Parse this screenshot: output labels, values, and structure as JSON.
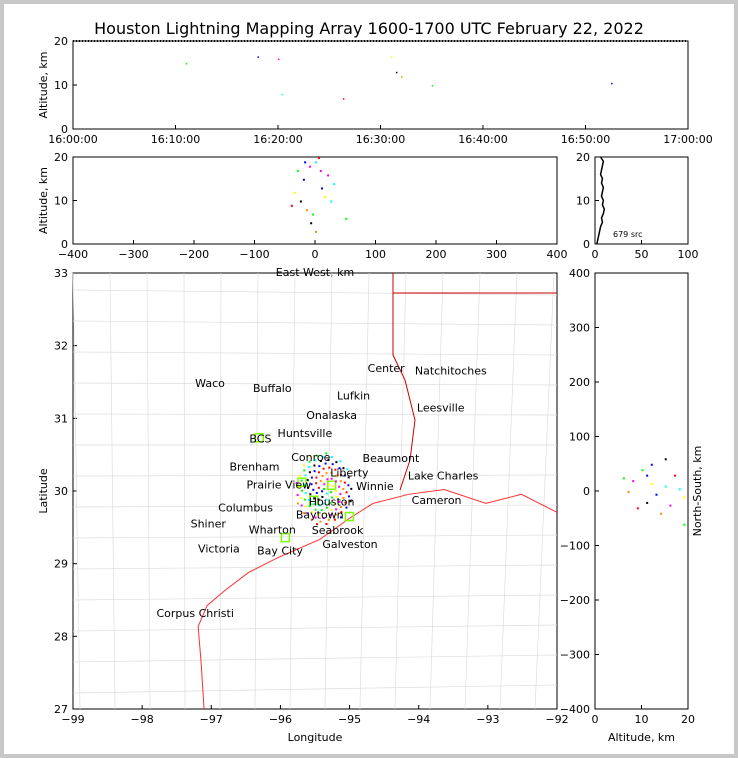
{
  "title": "Houston Lightning Mapping Array 1600-1700 UTC February 22, 2022",
  "chart_data": [
    {
      "type": "scatter",
      "panel": "time-altitude",
      "ylabel": "Altitude, km",
      "ylim": [
        0,
        20
      ],
      "xticks": [
        "16:00:00",
        "16:10:00",
        "16:20:00",
        "16:30:00",
        "16:40:00",
        "16:50:00",
        "17:00:00"
      ],
      "yticks": [
        "0",
        "10",
        "20"
      ],
      "points": [
        [
          "16:11:00",
          15
        ],
        [
          "16:18:00",
          16.5
        ],
        [
          "16:20:00",
          16
        ],
        [
          "16:20:20",
          8
        ],
        [
          "16:26:20",
          7
        ],
        [
          "16:31:00",
          16.5
        ],
        [
          "16:31:30",
          13
        ],
        [
          "16:32:00",
          12
        ],
        [
          "16:35:00",
          10
        ],
        [
          "16:52:30",
          10.5
        ]
      ]
    },
    {
      "type": "scatter",
      "panel": "east-west-altitude",
      "xlabel": "East-West, km",
      "ylabel": "Altitude, km",
      "xlim": [
        -400,
        400
      ],
      "ylim": [
        0,
        20
      ],
      "xticks": [
        "−400",
        "−300",
        "−200",
        "−100",
        "0",
        "100",
        "200",
        "300",
        "400"
      ],
      "yticks": [
        "0",
        "10",
        "20"
      ],
      "points": [
        [
          -30,
          17
        ],
        [
          -20,
          15
        ],
        [
          -10,
          18
        ],
        [
          0,
          19
        ],
        [
          5,
          20
        ],
        [
          -35,
          12
        ],
        [
          -25,
          10
        ],
        [
          -15,
          8
        ],
        [
          -5,
          7
        ],
        [
          10,
          13
        ],
        [
          20,
          16
        ],
        [
          30,
          14
        ],
        [
          -40,
          9
        ],
        [
          15,
          11
        ],
        [
          -8,
          5
        ],
        [
          0,
          3
        ],
        [
          50,
          6
        ],
        [
          -18,
          19
        ],
        [
          8,
          17
        ],
        [
          25,
          10
        ]
      ]
    },
    {
      "type": "line",
      "panel": "altitude-histogram",
      "xlim": [
        0,
        100
      ],
      "ylim": [
        0,
        20
      ],
      "xticks": [
        "0",
        "50",
        "100"
      ],
      "yticks": [
        "0",
        "10",
        "20"
      ],
      "annotation": "679 src",
      "altitudes": [
        0,
        1,
        2,
        3,
        4,
        5,
        6,
        7,
        8,
        9,
        10,
        11,
        12,
        13,
        14,
        15,
        16,
        17,
        18,
        19,
        20
      ],
      "counts": [
        2,
        3,
        4,
        5,
        6,
        8,
        7,
        9,
        10,
        8,
        9,
        7,
        8,
        9,
        7,
        8,
        6,
        7,
        8,
        9,
        6
      ]
    },
    {
      "type": "scatter",
      "panel": "plan-view",
      "xlabel": "Longitude",
      "ylabel": "Latitude",
      "xlim": [
        -99.46,
        -91.3
      ],
      "ylim": [
        26.13,
        33.38
      ],
      "xticks": [
        "−99",
        "−98",
        "−97",
        "−96",
        "−95",
        "−94",
        "−93",
        "−92"
      ],
      "yticks": [
        "27",
        "28",
        "29",
        "30",
        "31",
        "32",
        "33"
      ],
      "cities": [
        {
          "name": "Waco",
          "lon": -97.15,
          "lat": 31.55
        },
        {
          "name": "Buffalo",
          "lon": -96.1,
          "lat": 31.47
        },
        {
          "name": "Lufkin",
          "lon": -94.73,
          "lat": 31.34
        },
        {
          "name": "Center",
          "lon": -94.18,
          "lat": 31.8
        },
        {
          "name": "Natchitoches",
          "lon": -93.09,
          "lat": 31.76
        },
        {
          "name": "Leesville",
          "lon": -93.26,
          "lat": 31.14
        },
        {
          "name": "BCS",
          "lon": -96.3,
          "lat": 30.63,
          "color": "#8b0000"
        },
        {
          "name": "Huntsville",
          "lon": -95.55,
          "lat": 30.72
        },
        {
          "name": "Onalaska",
          "lon": -95.1,
          "lat": 30.8
        },
        {
          "name": "Conroe",
          "lon": -95.45,
          "lat": 30.32
        },
        {
          "name": "Brenham",
          "lon": -96.4,
          "lat": 30.16
        },
        {
          "name": "Prairie View",
          "lon": -95.99,
          "lat": 30.08
        },
        {
          "name": "Liberty",
          "lon": -94.8,
          "lat": 30.06
        },
        {
          "name": "Beaumont",
          "lon": -94.1,
          "lat": 30.09
        },
        {
          "name": "Lake Charles",
          "lon": -93.22,
          "lat": 30.23
        },
        {
          "name": "Winnie",
          "lon": -94.37,
          "lat": 29.84
        },
        {
          "name": "Cameron",
          "lon": -93.33,
          "lat": 29.82
        },
        {
          "name": "Houston",
          "lon": -95.1,
          "lat": 29.8,
          "color": "#ff8c00"
        },
        {
          "name": "Columbus",
          "lon": -96.55,
          "lat": 29.7
        },
        {
          "name": "Baytown",
          "lon": -95.3,
          "lat": 29.58
        },
        {
          "name": "Seabrook",
          "lon": -95.0,
          "lat": 29.54
        },
        {
          "name": "Shiner",
          "lon": -97.18,
          "lat": 29.43
        },
        {
          "name": "Wharton",
          "lon": -96.1,
          "lat": 29.33
        },
        {
          "name": "Galveston",
          "lon": -94.79,
          "lat": 29.31
        },
        {
          "name": "Bay City",
          "lon": -95.97,
          "lat": 28.98
        },
        {
          "name": "Victoria",
          "lon": -97.0,
          "lat": 28.8
        },
        {
          "name": "Corpus Christi",
          "lon": -97.4,
          "lat": 27.73
        }
      ],
      "stations": [
        [
          -96.32,
          30.64
        ],
        [
          -94.8,
          29.33
        ],
        [
          -95.88,
          28.98
        ],
        [
          -95.1,
          29.85
        ],
        [
          -95.6,
          29.9
        ],
        [
          -95.4,
          29.6
        ]
      ],
      "coastline": [
        [
          -97.25,
          26.13
        ],
        [
          -97.3,
          26.9
        ],
        [
          -97.35,
          27.5
        ],
        [
          -97.2,
          27.85
        ],
        [
          -96.9,
          28.1
        ],
        [
          -96.5,
          28.4
        ],
        [
          -96.0,
          28.65
        ],
        [
          -95.3,
          28.95
        ],
        [
          -94.8,
          29.3
        ],
        [
          -94.4,
          29.55
        ],
        [
          -93.8,
          29.7
        ],
        [
          -93.2,
          29.78
        ],
        [
          -92.5,
          29.55
        ],
        [
          -91.9,
          29.7
        ],
        [
          -91.3,
          29.4
        ]
      ]
    },
    {
      "type": "scatter",
      "panel": "altitude-north-south",
      "xlabel": "Altitude, km",
      "ylabel": "North-South, km",
      "xlim": [
        0,
        20
      ],
      "ylim": [
        -400,
        400
      ],
      "xticks": [
        "0",
        "10",
        "20"
      ],
      "yticks": [
        "−400",
        "−300",
        "−200",
        "−100",
        "0",
        "100",
        "200",
        "300",
        "400"
      ],
      "points": [
        [
          10,
          40
        ],
        [
          12,
          50
        ],
        [
          8,
          20
        ],
        [
          15,
          10
        ],
        [
          17,
          30
        ],
        [
          19,
          -10
        ],
        [
          11,
          -20
        ],
        [
          14,
          -40
        ],
        [
          6,
          25
        ],
        [
          13,
          -5
        ],
        [
          16,
          -25
        ],
        [
          18,
          5
        ],
        [
          9,
          -30
        ],
        [
          12,
          15
        ],
        [
          15,
          60
        ],
        [
          7,
          0
        ],
        [
          19,
          -60
        ],
        [
          11,
          30
        ]
      ]
    }
  ]
}
